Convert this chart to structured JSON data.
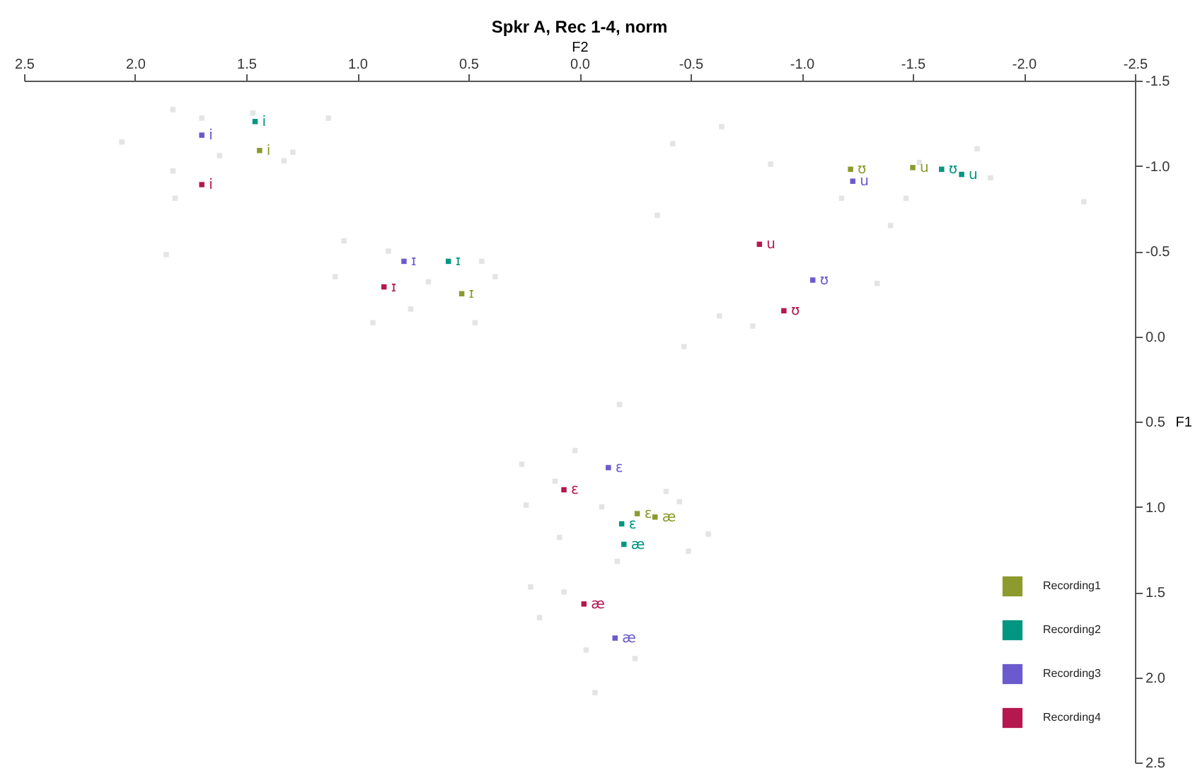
{
  "chart_data": {
    "type": "scatter",
    "title": "Spkr A, Rec 1-4, norm",
    "xlabel": "F2",
    "ylabel": "F1",
    "xlim": [
      2.5,
      -2.5
    ],
    "ylim": [
      2.5,
      -1.5
    ],
    "xticks": [
      {
        "value": 2.5,
        "label": "2.5"
      },
      {
        "value": 2,
        "label": "2.0"
      },
      {
        "value": 1.5,
        "label": "1.5"
      },
      {
        "value": 1,
        "label": "1.0"
      },
      {
        "value": 0.5,
        "label": "0.5"
      },
      {
        "value": 0,
        "label": "0.0"
      },
      {
        "value": -0.5,
        "label": "-0.5"
      },
      {
        "value": -1,
        "label": "-1.0"
      },
      {
        "value": -1.5,
        "label": "-1.5"
      },
      {
        "value": -2,
        "label": "-2.0"
      },
      {
        "value": -2.5,
        "label": "-2.5"
      }
    ],
    "yticks": [
      {
        "value": -1.5,
        "label": "-1.5"
      },
      {
        "value": -1,
        "label": "-1.0"
      },
      {
        "value": -0.5,
        "label": "-0.5"
      },
      {
        "value": 0,
        "label": "0.0"
      },
      {
        "value": 0.5,
        "label": "0.5"
      },
      {
        "value": 1,
        "label": "1.0"
      },
      {
        "value": 1.5,
        "label": "1.5"
      },
      {
        "value": 2,
        "label": "2.0"
      },
      {
        "value": 2.5,
        "label": "2.5"
      }
    ],
    "grid": false,
    "legend": "bottom right",
    "series": [
      {
        "type": "scatter",
        "marker": "square",
        "color": "#e4e4e4",
        "x": [
          1.83,
          2.06,
          1.7,
          1.47,
          1.13,
          1.29,
          1.62,
          1.33,
          1.83,
          1.86,
          1.82,
          1.06,
          0.86,
          0.68,
          1.1,
          0.44,
          0.38,
          0.47,
          0.93,
          0.76,
          -0.42,
          -0.64,
          -0.86,
          -1.18,
          -1.53,
          -1.79,
          -1.85,
          -1.47,
          -1.4,
          -2.27,
          -1.34,
          -0.78,
          -0.35,
          -0.63,
          -0.47,
          -0.18,
          0.26,
          0.02,
          0.11,
          -0.1,
          -0.39,
          -0.45,
          -0.58,
          0.24,
          0.09,
          -0.17,
          0.22,
          -0.49,
          0.18,
          -0.25,
          -0.07,
          -0.03,
          0.07
        ],
        "values": [
          -1.33,
          -1.14,
          -1.28,
          -1.31,
          -1.28,
          -1.08,
          -1.06,
          -1.03,
          -0.97,
          -0.48,
          -0.81,
          -0.56,
          -0.5,
          -0.32,
          -0.35,
          -0.44,
          -0.35,
          -0.08,
          -0.08,
          -0.16,
          -1.13,
          -1.23,
          -1.01,
          -0.81,
          -1.02,
          -1.1,
          -0.93,
          -0.81,
          -0.65,
          -0.79,
          -0.31,
          -0.06,
          -0.71,
          -0.12,
          0.06,
          0.4,
          0.75,
          0.67,
          0.85,
          1.0,
          0.91,
          0.97,
          1.16,
          0.99,
          1.18,
          1.32,
          1.47,
          1.26,
          1.65,
          1.89,
          2.09,
          1.84,
          1.5
        ]
      },
      {
        "type": "scatter",
        "marker": "square",
        "name": "Recording1",
        "color": "#8c9a2e",
        "x": [
          1.44,
          0.53,
          -1.22,
          -1.5,
          -0.26,
          -0.34
        ],
        "values": [
          -1.09,
          -0.25,
          -0.98,
          -0.99,
          1.04,
          1.06
        ],
        "value_labels": [
          "i",
          "ɪ",
          "ʊ",
          "u",
          "ɛ",
          "æ"
        ]
      },
      {
        "type": "scatter",
        "marker": "square",
        "name": "Recording2",
        "color": "#009682",
        "x": [
          1.46,
          0.59,
          -1.63,
          -1.72,
          -0.19,
          -0.2
        ],
        "values": [
          -1.26,
          -0.44,
          -0.98,
          -0.95,
          1.1,
          1.22
        ],
        "value_labels": [
          "i",
          "ɪ",
          "ʊ",
          "u",
          "ɛ",
          "æ"
        ]
      },
      {
        "type": "scatter",
        "marker": "square",
        "name": "Recording3",
        "color": "#6a5acd",
        "x": [
          1.7,
          0.79,
          -1.05,
          -1.23,
          -0.13,
          -0.16
        ],
        "values": [
          -1.18,
          -0.44,
          -0.33,
          -0.91,
          0.77,
          1.77
        ],
        "value_labels": [
          "i",
          "ɪ",
          "ʊ",
          "u",
          "ɛ",
          "æ"
        ]
      },
      {
        "type": "scatter",
        "marker": "square",
        "name": "Recording4",
        "color": "#b5174f",
        "x": [
          1.7,
          0.88,
          -0.92,
          -0.81,
          0.07,
          -0.02
        ],
        "values": [
          -0.89,
          -0.29,
          -0.15,
          -0.54,
          0.9,
          1.57
        ],
        "value_labels": [
          "i",
          "ɪ",
          "ʊ",
          "u",
          "ɛ",
          "æ"
        ]
      }
    ]
  }
}
